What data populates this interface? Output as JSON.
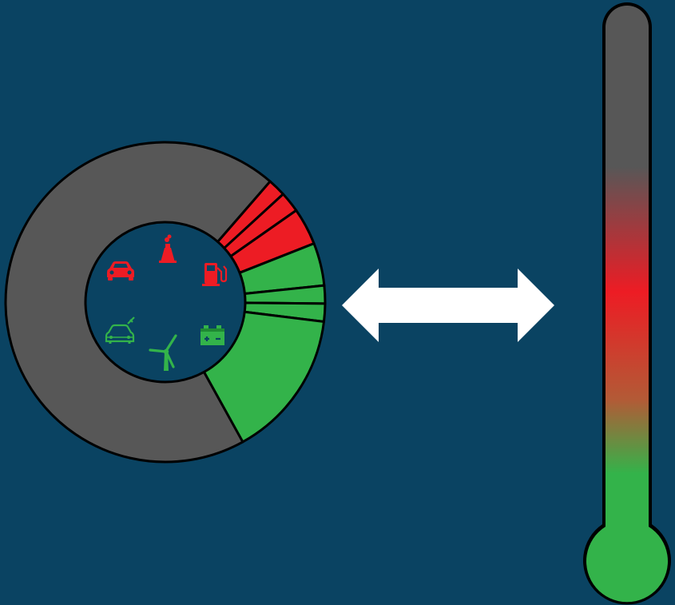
{
  "colors": {
    "background": "#0a4362",
    "gray": "#575757",
    "red": "#ed1c24",
    "green": "#33b34a",
    "mid_brown": "#b35a36",
    "outline": "#000000",
    "arrow": "#ffffff"
  },
  "donut": {
    "segments": [
      {
        "category": "other",
        "color": "gray",
        "share": 0.6944
      },
      {
        "category": "fossil",
        "color": "red",
        "share": 0.0181
      },
      {
        "category": "fossil",
        "color": "red",
        "share": 0.0208
      },
      {
        "category": "fossil",
        "color": "red",
        "share": 0.0375
      },
      {
        "category": "renewable",
        "color": "green",
        "share": 0.0431
      },
      {
        "category": "renewable",
        "color": "green",
        "share": 0.0181
      },
      {
        "category": "renewable",
        "color": "green",
        "share": 0.0181
      },
      {
        "category": "renewable",
        "color": "green",
        "share": 0.1499
      }
    ]
  },
  "icons": {
    "fossil": [
      "car-icon",
      "factory-icon",
      "fuel-pump-icon"
    ],
    "renewable": [
      "electric-car-icon",
      "wind-turbine-icon",
      "battery-icon"
    ]
  },
  "arrow": {
    "direction": "bidirectional"
  },
  "thermometer": {
    "fill_level": 1.0,
    "gradient": [
      "gray",
      "red",
      "green"
    ]
  }
}
